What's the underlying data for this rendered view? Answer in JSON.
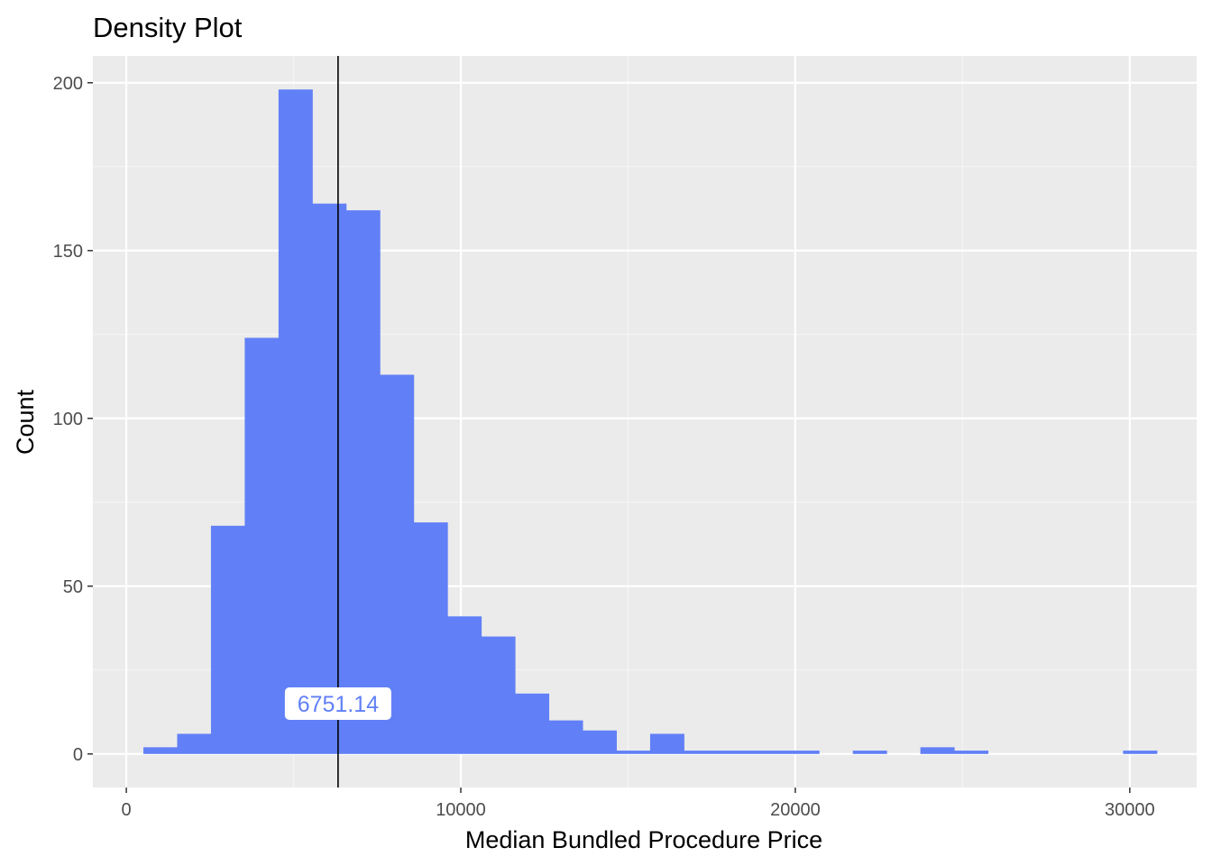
{
  "chart_data": {
    "type": "bar",
    "title": "Density Plot",
    "xlabel": "Median Bundled Procedure Price",
    "ylabel": "Count",
    "xlim": [
      -1000,
      32000
    ],
    "ylim": [
      -10,
      208
    ],
    "x_ticks": [
      0,
      10000,
      20000,
      30000
    ],
    "y_ticks": [
      0,
      50,
      100,
      150,
      200
    ],
    "bin_width": 1010,
    "bins": [
      {
        "x0": 510,
        "x1": 1520,
        "count": 2
      },
      {
        "x0": 1520,
        "x1": 2530,
        "count": 6
      },
      {
        "x0": 2530,
        "x1": 3540,
        "count": 68
      },
      {
        "x0": 3540,
        "x1": 4550,
        "count": 124
      },
      {
        "x0": 4550,
        "x1": 5560,
        "count": 198
      },
      {
        "x0": 5560,
        "x1": 6570,
        "count": 164
      },
      {
        "x0": 6570,
        "x1": 7580,
        "count": 162
      },
      {
        "x0": 7580,
        "x1": 8590,
        "count": 113
      },
      {
        "x0": 8590,
        "x1": 9600,
        "count": 69
      },
      {
        "x0": 9600,
        "x1": 10610,
        "count": 41
      },
      {
        "x0": 10610,
        "x1": 11620,
        "count": 35
      },
      {
        "x0": 11620,
        "x1": 12630,
        "count": 18
      },
      {
        "x0": 12630,
        "x1": 13640,
        "count": 10
      },
      {
        "x0": 13640,
        "x1": 14650,
        "count": 7
      },
      {
        "x0": 14650,
        "x1": 15660,
        "count": 1
      },
      {
        "x0": 15660,
        "x1": 16670,
        "count": 6
      },
      {
        "x0": 16670,
        "x1": 17680,
        "count": 1
      },
      {
        "x0": 17680,
        "x1": 18690,
        "count": 1
      },
      {
        "x0": 18690,
        "x1": 19700,
        "count": 1
      },
      {
        "x0": 19700,
        "x1": 20710,
        "count": 1
      },
      {
        "x0": 21720,
        "x1": 22730,
        "count": 1
      },
      {
        "x0": 23740,
        "x1": 24750,
        "count": 2
      },
      {
        "x0": 24750,
        "x1": 25760,
        "count": 1
      },
      {
        "x0": 29800,
        "x1": 30810,
        "count": 1
      }
    ],
    "vline": {
      "x": 6330
    },
    "annotation": {
      "text": "6751.14",
      "x": 6330,
      "y": 15
    },
    "fill_color": "#6180f7",
    "panel_color": "#ebebeb",
    "grid": true,
    "legend": "none"
  }
}
